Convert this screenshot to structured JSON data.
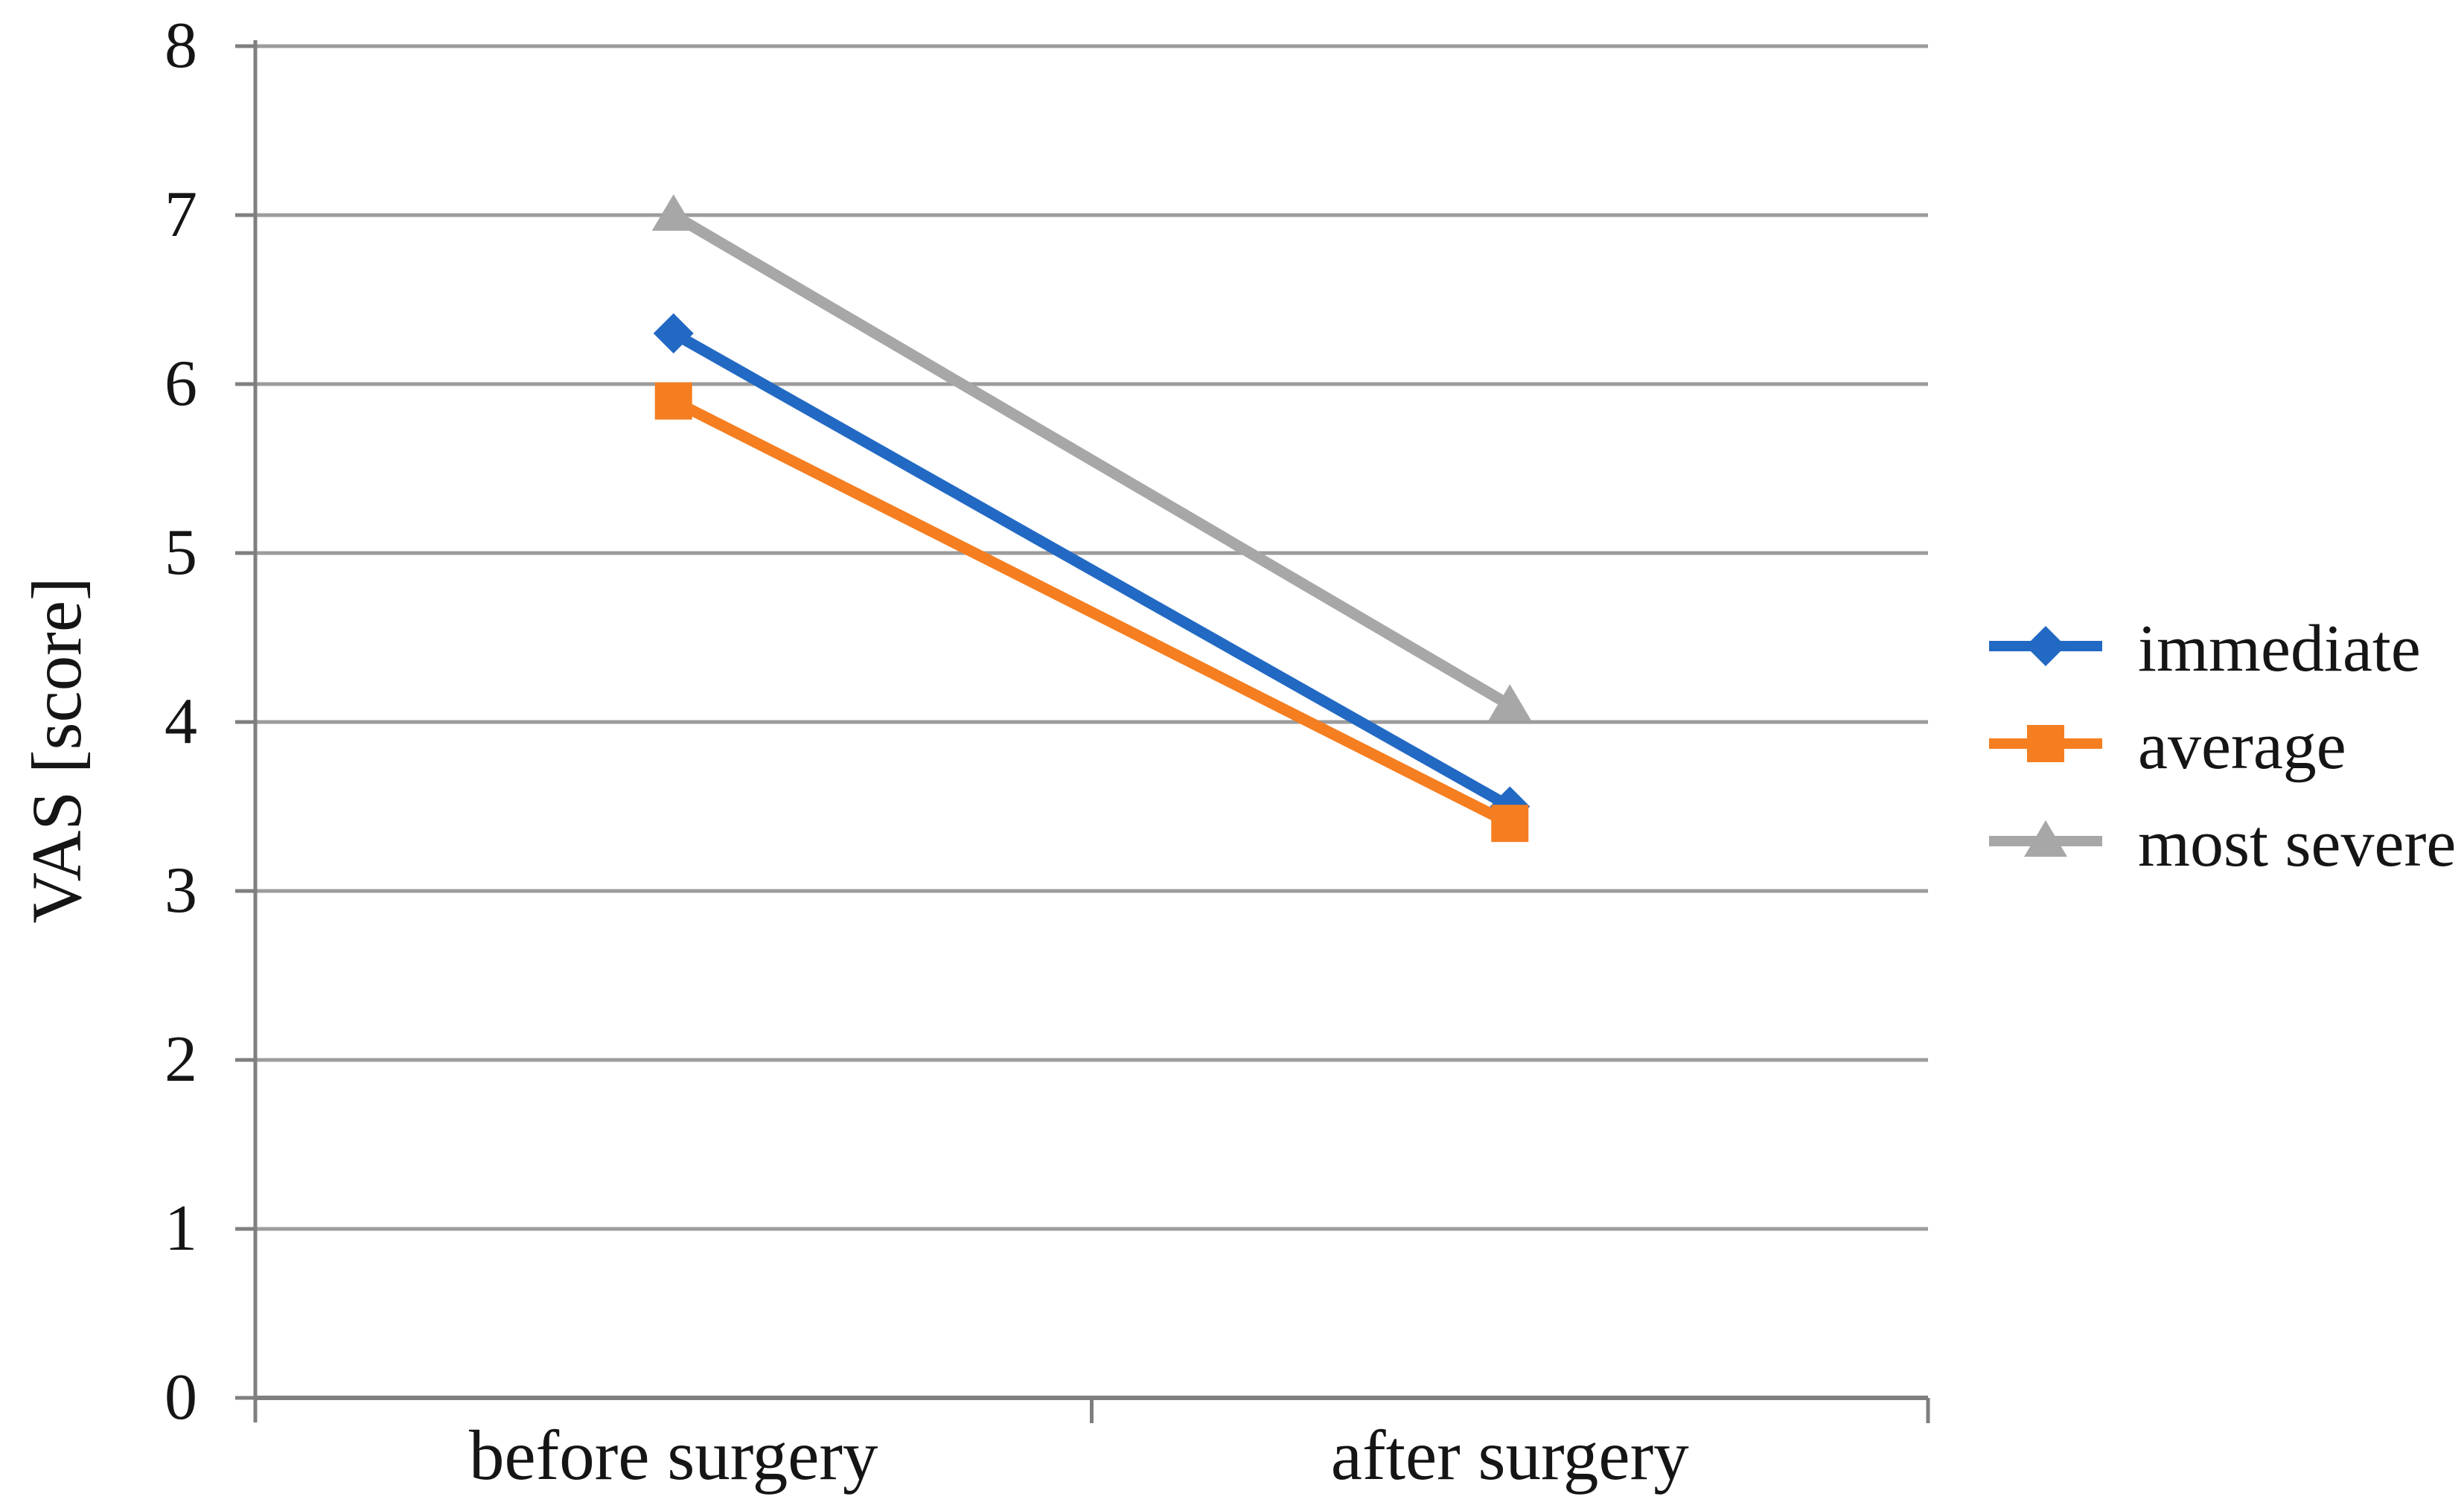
{
  "chart_data": {
    "type": "line",
    "title": "",
    "categories": [
      "before surgery",
      "after surgery"
    ],
    "series": [
      {
        "name": "immediate",
        "color": "#2269C3",
        "marker": "diamond",
        "values": [
          6.3,
          3.5
        ]
      },
      {
        "name": "average",
        "color": "#F57E20",
        "marker": "square",
        "values": [
          5.9,
          3.4
        ]
      },
      {
        "name": "most severe",
        "color": "#A7A7A7",
        "marker": "triangle",
        "values": [
          7.0,
          4.1
        ]
      }
    ],
    "xlabel": "",
    "ylabel": "VAS [score]",
    "ylim": [
      0,
      8
    ],
    "yticks": [
      0,
      1,
      2,
      3,
      4,
      5,
      6,
      7,
      8
    ],
    "grid": "horizontal gridlines at every integer",
    "legend_position": "right, vertically centered",
    "colors": {
      "grid_line": "#9C9C9C",
      "axis_line": "#7F7F7F",
      "text": "#151515",
      "background": "#FFFFFF"
    }
  }
}
